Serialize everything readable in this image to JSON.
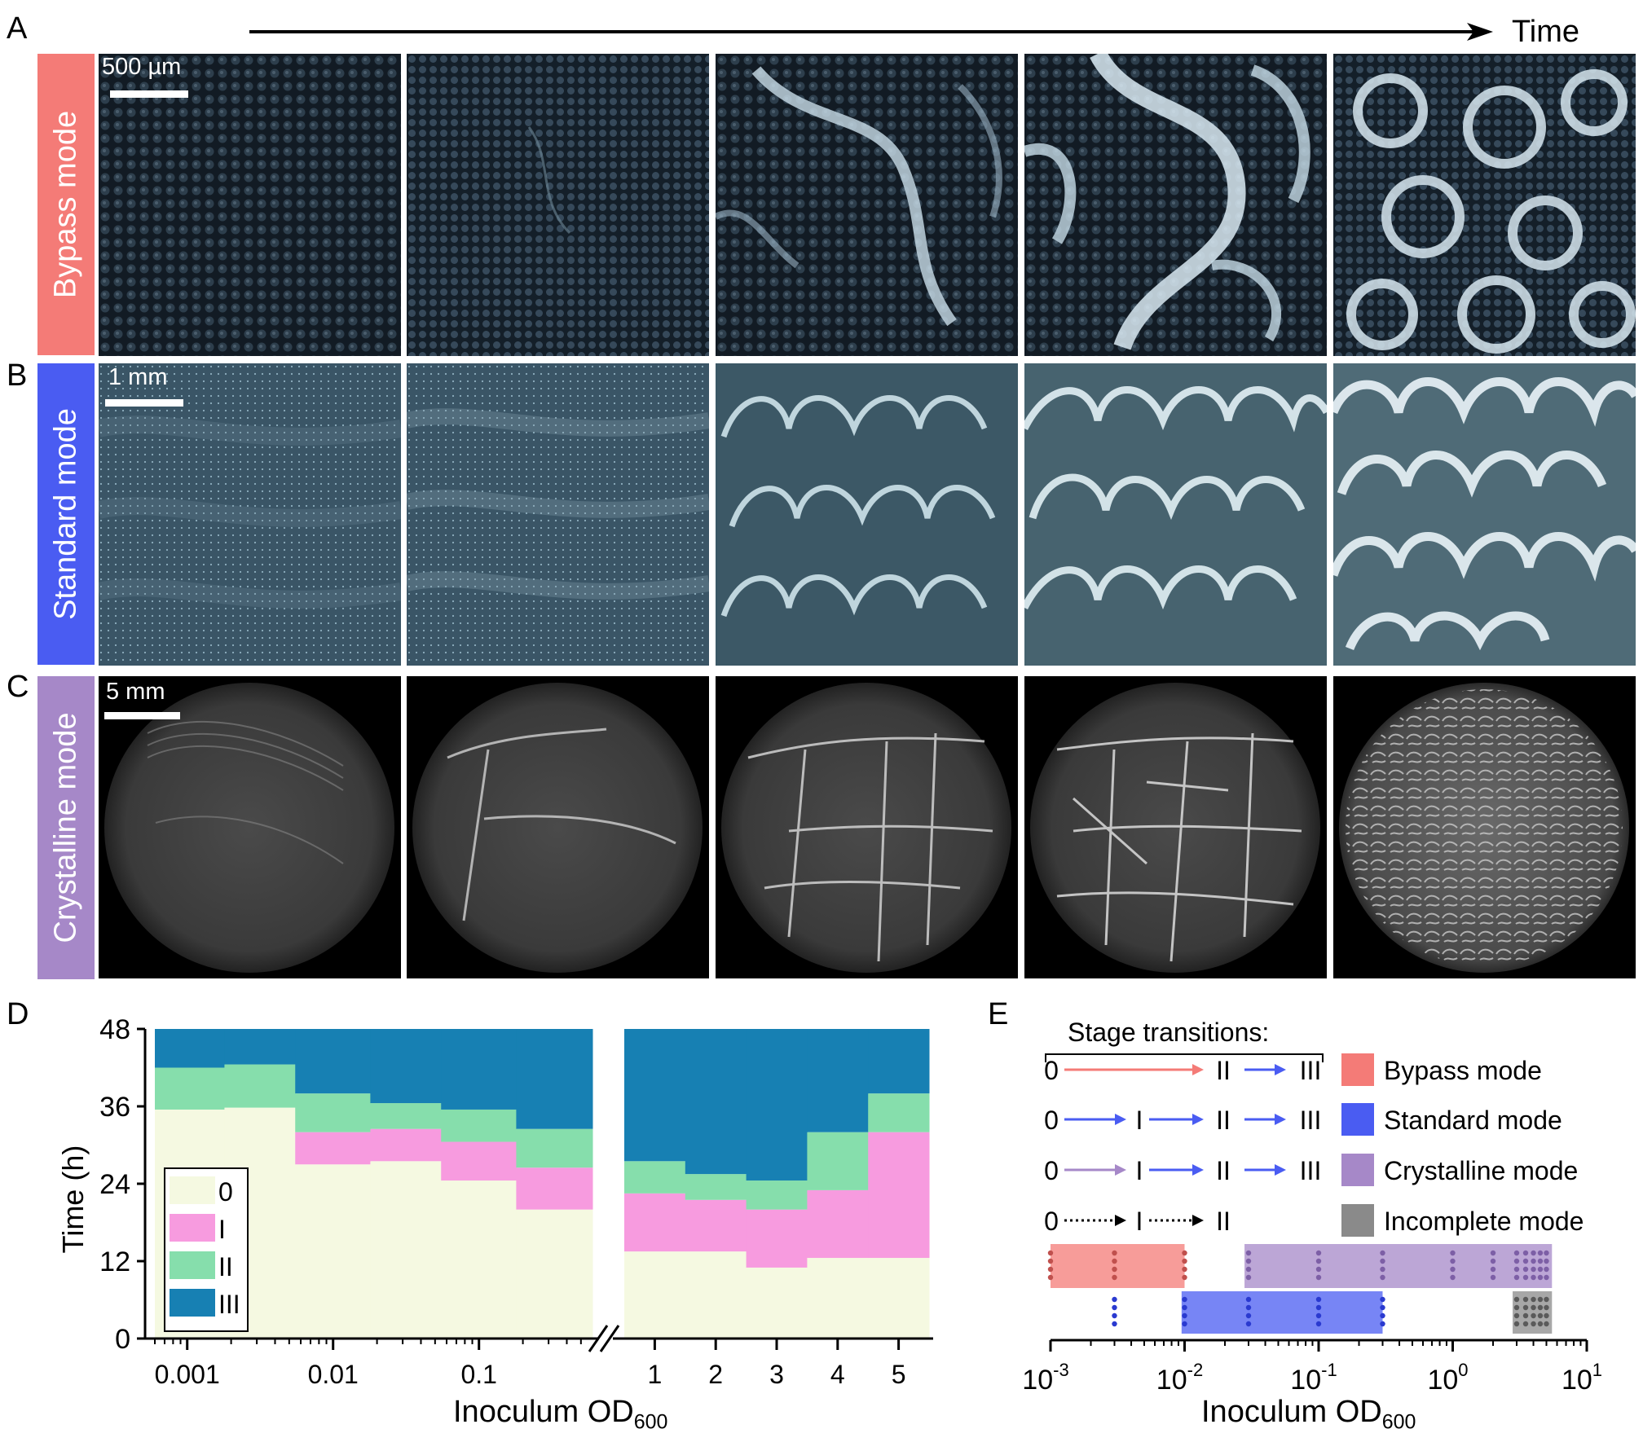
{
  "time_arrow_label": "Time",
  "panel_letters": [
    "A",
    "B",
    "C",
    "D",
    "E"
  ],
  "rows": [
    {
      "mode_label": "Bypass mode",
      "color": "#f47b77",
      "scalebar": "500 µm"
    },
    {
      "mode_label": "Standard mode",
      "color": "#4a5cf2",
      "scalebar": "1 mm"
    },
    {
      "mode_label": "Crystalline mode",
      "color": "#a688c8",
      "scalebar": "5 mm"
    }
  ],
  "stage_colors": {
    "0": "#f5f9e1",
    "I": "#f79bdf",
    "II": "#86deac",
    "III": "#1780b3"
  },
  "chart_data": [
    {
      "type": "area",
      "panel": "D",
      "ylabel": "Time (h)",
      "xlabel": "Inoculum OD",
      "xlabel_sub": "600",
      "ylim": [
        0,
        48
      ],
      "yticks": [
        "0",
        "12",
        "24",
        "36",
        "48"
      ],
      "legend": [
        "0",
        "I",
        "II",
        "III"
      ],
      "legend_position": "bottom-left",
      "left_segment": {
        "xticks": [
          "0.001",
          "0.01",
          "0.1"
        ],
        "bins": [
          {
            "x_from": 0.0006,
            "x_to": 0.0018,
            "t0": 35.5,
            "tI": 35.5,
            "tII": 42
          },
          {
            "x_from": 0.0018,
            "x_to": 0.0055,
            "t0": 35.8,
            "tI": 35.8,
            "tII": 42.5
          },
          {
            "x_from": 0.0055,
            "x_to": 0.018,
            "t0": 27,
            "tI": 32,
            "tII": 38
          },
          {
            "x_from": 0.018,
            "x_to": 0.055,
            "t0": 27.5,
            "tI": 32.5,
            "tII": 36.5
          },
          {
            "x_from": 0.055,
            "x_to": 0.18,
            "t0": 24.5,
            "tI": 30.5,
            "tII": 35.5
          },
          {
            "x_from": 0.18,
            "x_to": 0.6,
            "t0": 20,
            "tI": 26.5,
            "tII": 32.5
          }
        ]
      },
      "right_segment": {
        "xticks": [
          "1",
          "2",
          "3",
          "4",
          "5"
        ],
        "bins": [
          {
            "x_from": 0.5,
            "x_to": 1.5,
            "t0": 13.5,
            "tI": 22.5,
            "tII": 27.5
          },
          {
            "x_from": 1.5,
            "x_to": 2.5,
            "t0": 13.5,
            "tI": 21.5,
            "tII": 25.5
          },
          {
            "x_from": 2.5,
            "x_to": 3.5,
            "t0": 11,
            "tI": 20,
            "tII": 24.5
          },
          {
            "x_from": 3.5,
            "x_to": 4.5,
            "t0": 12.5,
            "tI": 23,
            "tII": 32
          },
          {
            "x_from": 4.5,
            "x_to": 5.5,
            "t0": 12.5,
            "tI": 32,
            "tII": 38
          }
        ]
      }
    },
    {
      "type": "scatter",
      "panel": "E",
      "title": "Stage transitions:",
      "xlabel": "Inoculum OD",
      "xlabel_sub": "600",
      "xscale": "log",
      "xlim": [
        0.001,
        10
      ],
      "xticks": [
        {
          "base": "10",
          "exp": "-3"
        },
        {
          "base": "10",
          "exp": "-2"
        },
        {
          "base": "10",
          "exp": "-1"
        },
        {
          "base": "10",
          "exp": "0"
        },
        {
          "base": "10",
          "exp": "1"
        }
      ],
      "transition_rows": [
        {
          "stages": [
            "0",
            "II",
            "III"
          ],
          "arrow_colors": [
            "#f47b77",
            "#4a5cf2"
          ]
        },
        {
          "stages": [
            "0",
            "I",
            "II",
            "III"
          ],
          "arrow_colors": [
            "#4a5cf2",
            "#4a5cf2",
            "#4a5cf2"
          ]
        },
        {
          "stages": [
            "0",
            "I",
            "II",
            "III"
          ],
          "arrow_colors": [
            "#a688c8",
            "#4a5cf2",
            "#4a5cf2"
          ]
        },
        {
          "stages": [
            "0",
            "I",
            "II"
          ],
          "arrow_colors": [
            "dotted",
            "dotted"
          ]
        }
      ],
      "legend": [
        {
          "name": "Bypass mode",
          "color": "#f47b77"
        },
        {
          "name": "Standard mode",
          "color": "#4a5cf2"
        },
        {
          "name": "Crystalline mode",
          "color": "#a688c8"
        },
        {
          "name": "Incomplete mode",
          "color": "#8a8a8a"
        }
      ],
      "ranges": [
        {
          "name": "Bypass mode",
          "lane": "upper",
          "from": 0.001,
          "to": 0.01
        },
        {
          "name": "Crystalline mode",
          "lane": "upper",
          "from": 0.028,
          "to": 5.5
        },
        {
          "name": "Standard mode",
          "lane": "lower",
          "from": 0.0095,
          "to": 0.3
        },
        {
          "name": "Incomplete mode",
          "lane": "lower",
          "from": 2.8,
          "to": 5.5
        }
      ],
      "points": [
        {
          "mode": "Bypass mode",
          "lane": "upper",
          "x": [
            0.001,
            0.003,
            0.01
          ]
        },
        {
          "mode": "Crystalline mode",
          "lane": "upper",
          "x": [
            0.03,
            0.1,
            0.3,
            1,
            2,
            3,
            3.5,
            4,
            4.5,
            5
          ]
        },
        {
          "mode": "Standard mode",
          "lane": "lower",
          "x": [
            0.003,
            0.01,
            0.03,
            0.1,
            0.3
          ]
        },
        {
          "mode": "Incomplete mode",
          "lane": "lower",
          "x": [
            3,
            3.5,
            4,
            4.5,
            5
          ]
        }
      ]
    }
  ]
}
